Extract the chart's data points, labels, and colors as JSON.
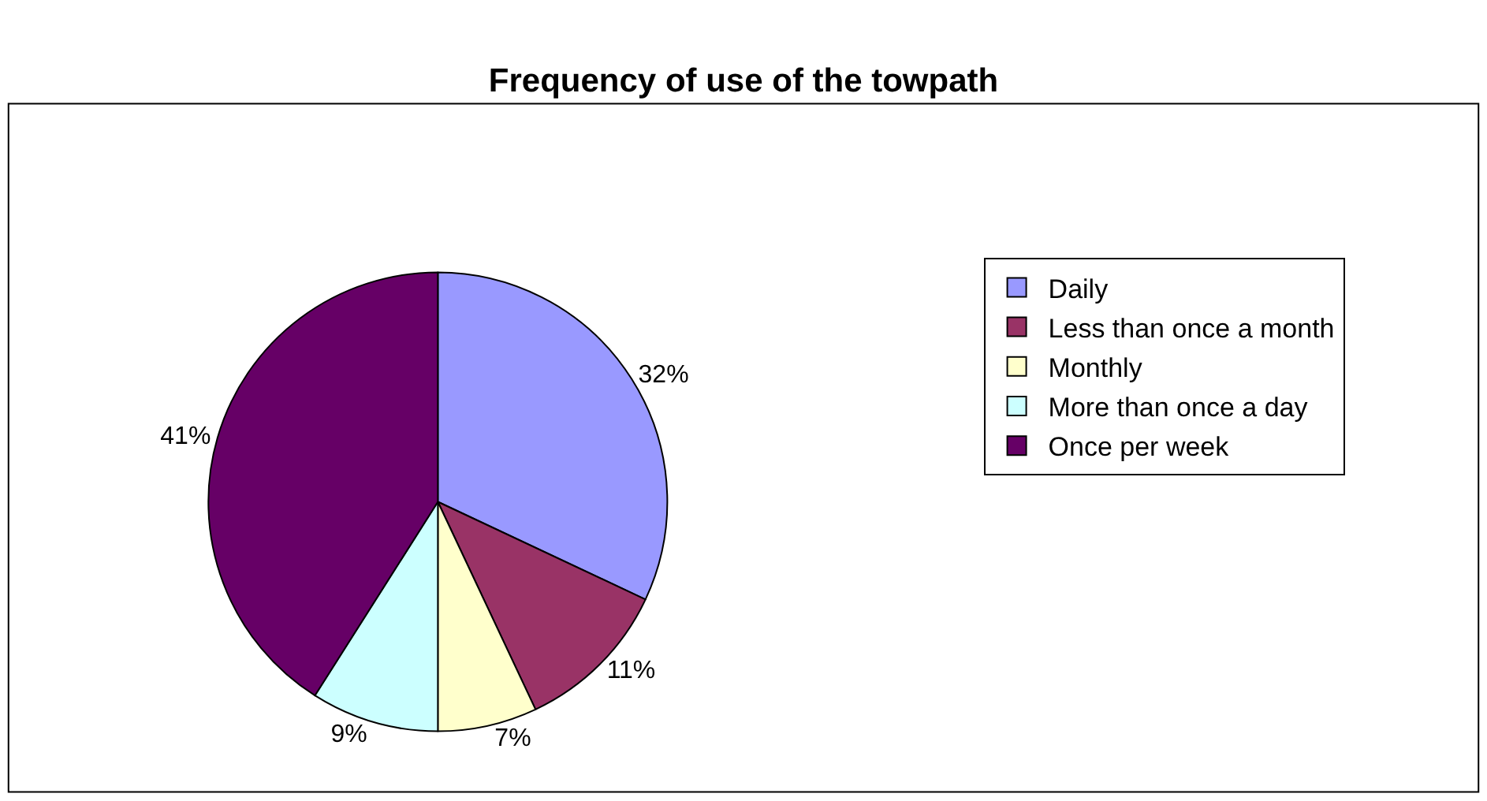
{
  "chart_data": {
    "type": "pie",
    "title": "Frequency of use of the towpath",
    "categories": [
      "Daily",
      "Less than once a month",
      "Monthly",
      "More than once a day",
      "Once per week"
    ],
    "values": [
      32,
      11,
      7,
      9,
      41
    ],
    "value_labels": [
      "32%",
      "11%",
      "7%",
      "9%",
      "41%"
    ],
    "colors": [
      "#9999ff",
      "#993366",
      "#ffffcc",
      "#ccffff",
      "#660066"
    ],
    "legend": "right"
  }
}
